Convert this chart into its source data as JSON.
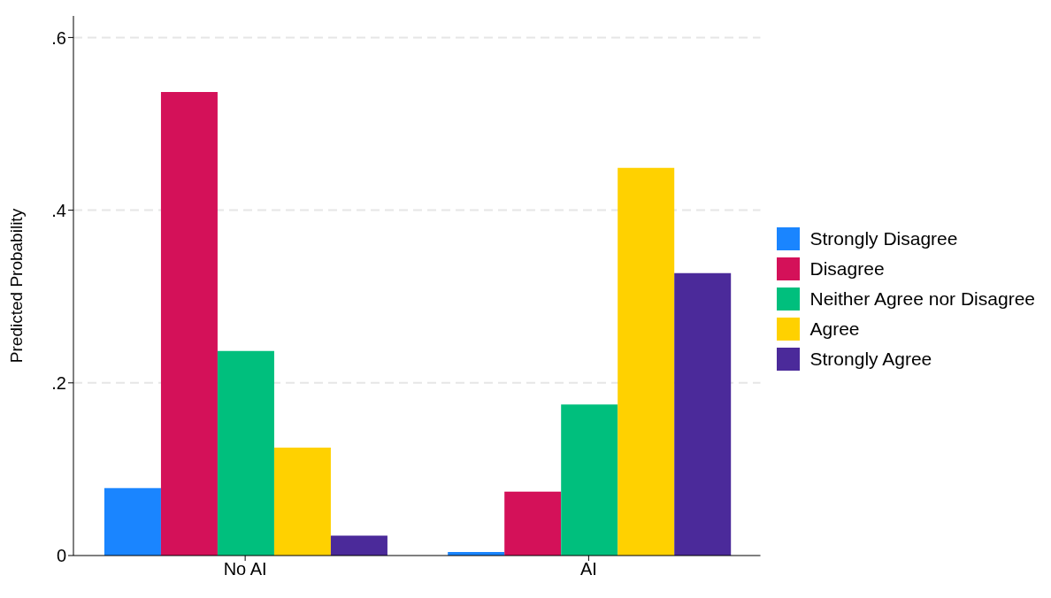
{
  "chart_data": {
    "type": "bar",
    "ylabel": "Predicted Probability",
    "categories": [
      "No AI",
      "AI"
    ],
    "series": [
      {
        "name": "Strongly Disagree",
        "color": "#1a85ff",
        "values": [
          0.078,
          0.004
        ]
      },
      {
        "name": "Disagree",
        "color": "#d41159",
        "values": [
          0.537,
          0.074
        ]
      },
      {
        "name": "Neither Agree nor Disagree",
        "color": "#00bf7d",
        "values": [
          0.237,
          0.175
        ]
      },
      {
        "name": "Agree",
        "color": "#ffd100",
        "values": [
          0.125,
          0.449
        ]
      },
      {
        "name": "Strongly Agree",
        "color": "#4b2a9a",
        "values": [
          0.023,
          0.327
        ]
      }
    ],
    "ylim": [
      0,
      0.625
    ],
    "yticks": [
      0,
      {
        "value": 0.2,
        "label": ".2"
      },
      {
        "value": 0.4,
        "label": ".4"
      },
      {
        "value": 0.6,
        "label": ".6"
      }
    ],
    "grid": "y",
    "legend": "right"
  }
}
